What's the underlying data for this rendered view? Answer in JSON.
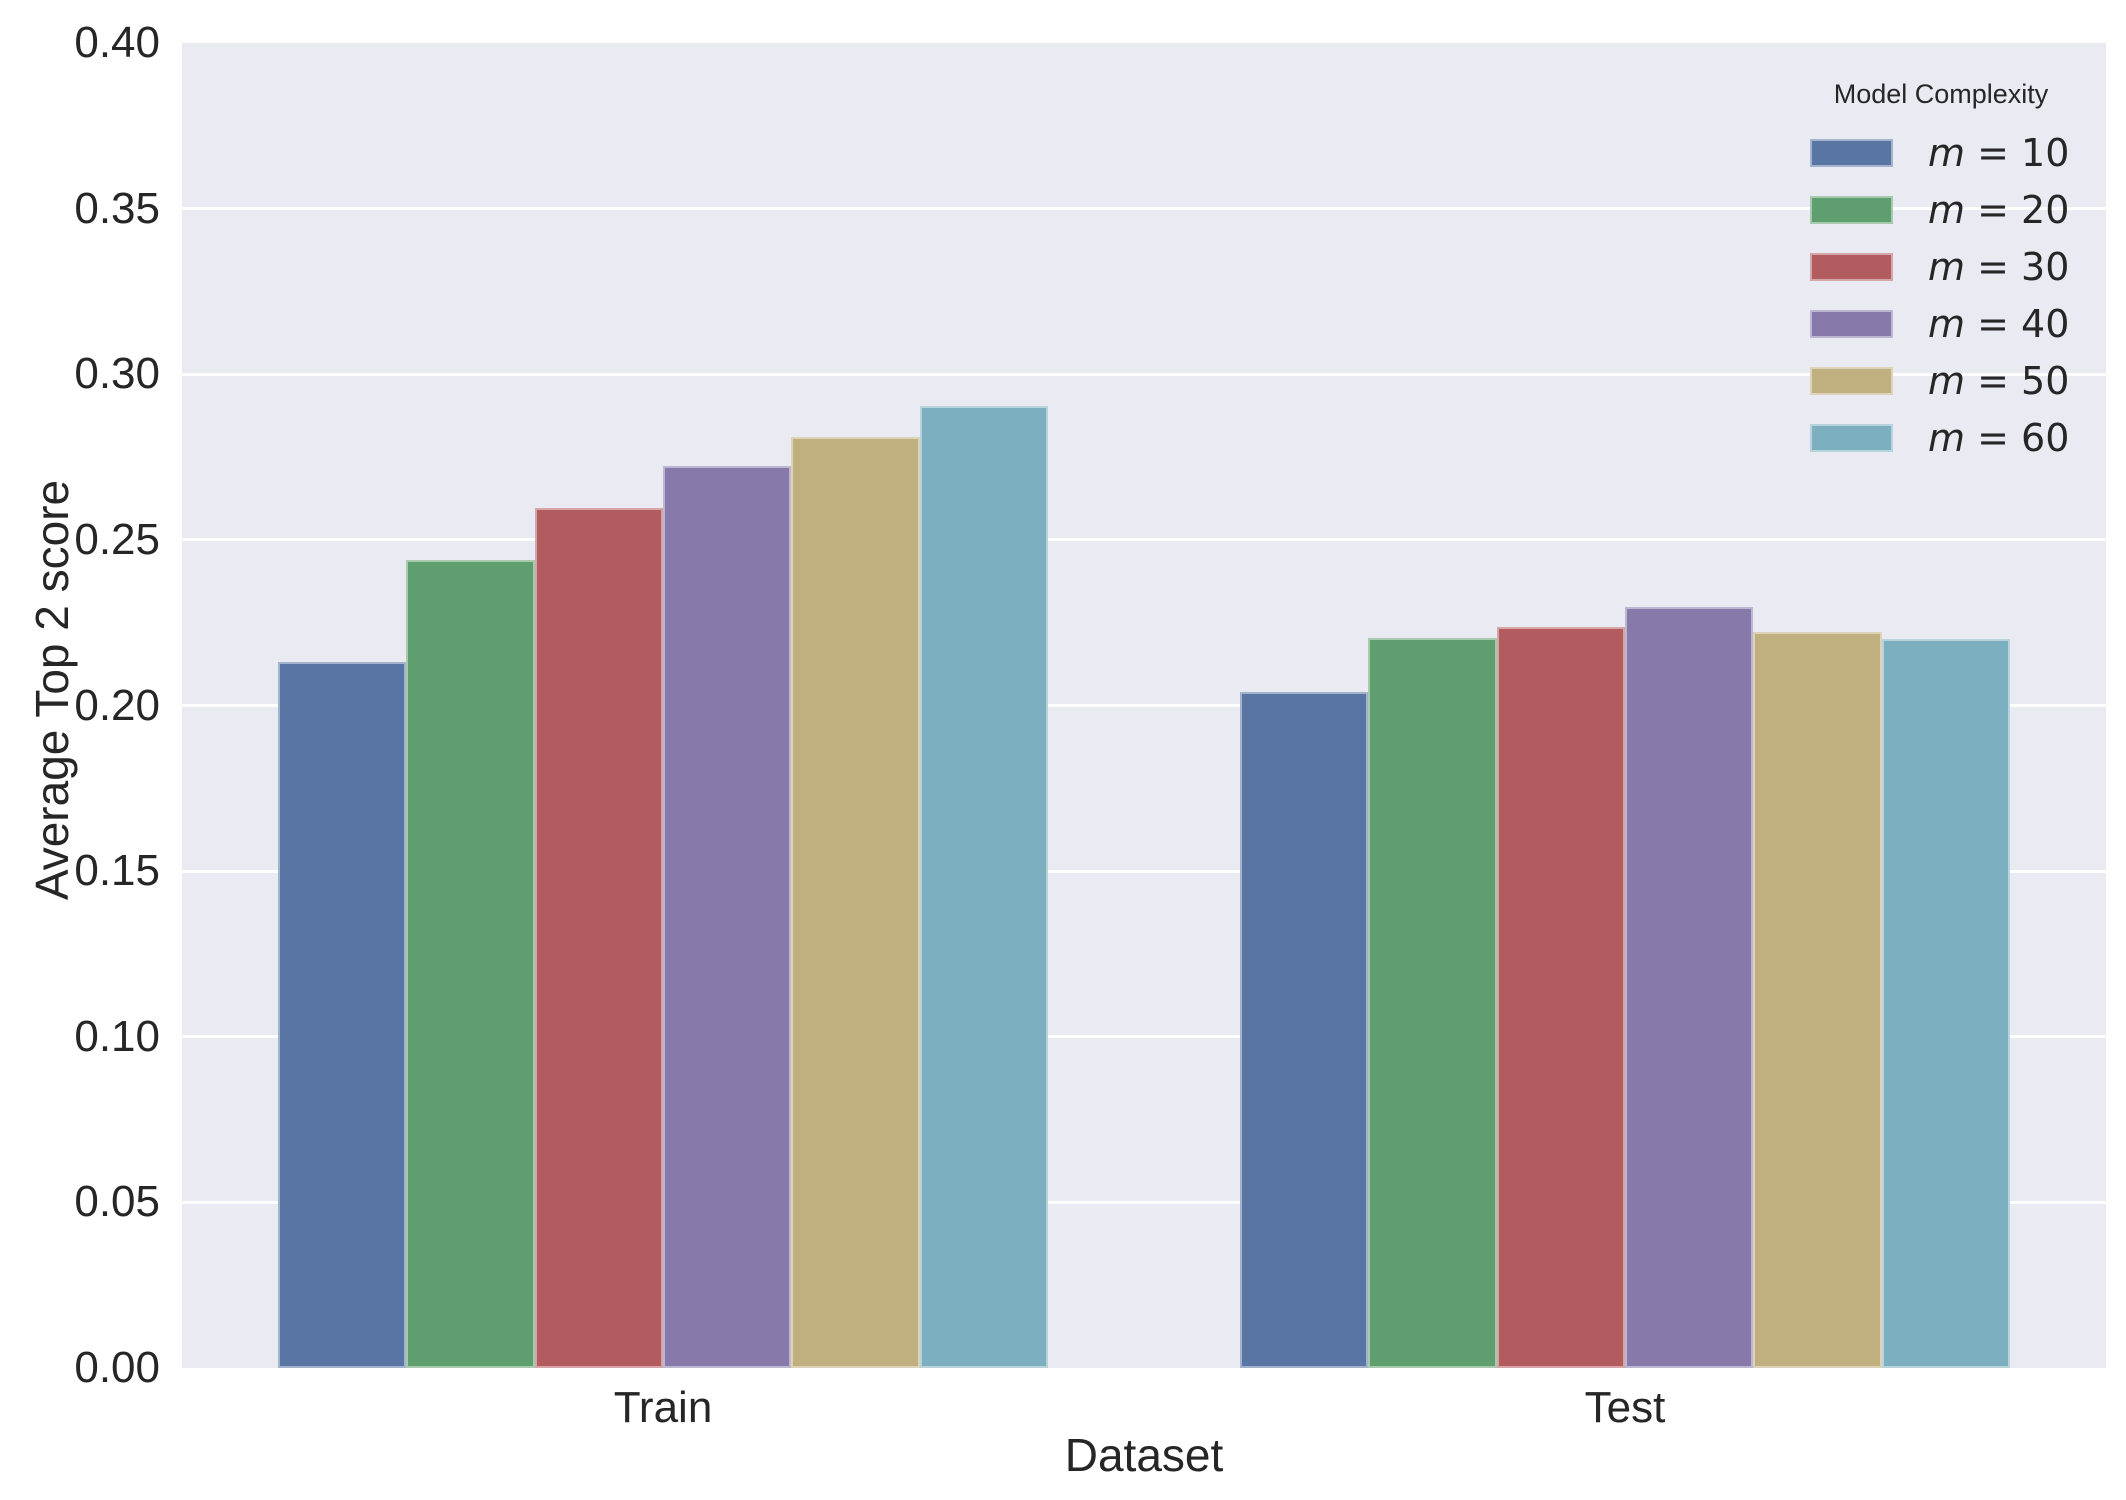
{
  "figure": {
    "background": "#ffffff",
    "plot_background": "#eaeaf2",
    "grid_color": "#ffffff",
    "text_color": "#262626"
  },
  "chart_data": {
    "type": "bar",
    "title": "",
    "xlabel": "Dataset",
    "ylabel": "Average Top 2 score",
    "categories": [
      "Train",
      "Test"
    ],
    "series": [
      {
        "name": "m = 10",
        "color": "#5975a4",
        "values": [
          0.2132,
          0.204
        ]
      },
      {
        "name": "m = 20",
        "color": "#5f9e6e",
        "values": [
          0.244,
          0.2204
        ]
      },
      {
        "name": "m = 30",
        "color": "#b25c60",
        "values": [
          0.2596,
          0.2238
        ]
      },
      {
        "name": "m = 40",
        "color": "#877aaa",
        "values": [
          0.2724,
          0.2298
        ]
      },
      {
        "name": "m = 50",
        "color": "#c1b07f",
        "values": [
          0.281,
          0.2222
        ]
      },
      {
        "name": "m = 60",
        "color": "#7cafc0",
        "values": [
          0.2904,
          0.2202
        ]
      }
    ],
    "ylim": [
      0,
      0.4
    ],
    "yticks": [
      "0.00",
      "0.05",
      "0.10",
      "0.15",
      "0.20",
      "0.25",
      "0.30",
      "0.35",
      "0.40"
    ],
    "grid": true,
    "legend": {
      "title": "Model Complexity",
      "position": "upper right",
      "entries": [
        "m = 10",
        "m = 20",
        "m = 30",
        "m = 40",
        "m = 50",
        "m = 60"
      ]
    }
  }
}
